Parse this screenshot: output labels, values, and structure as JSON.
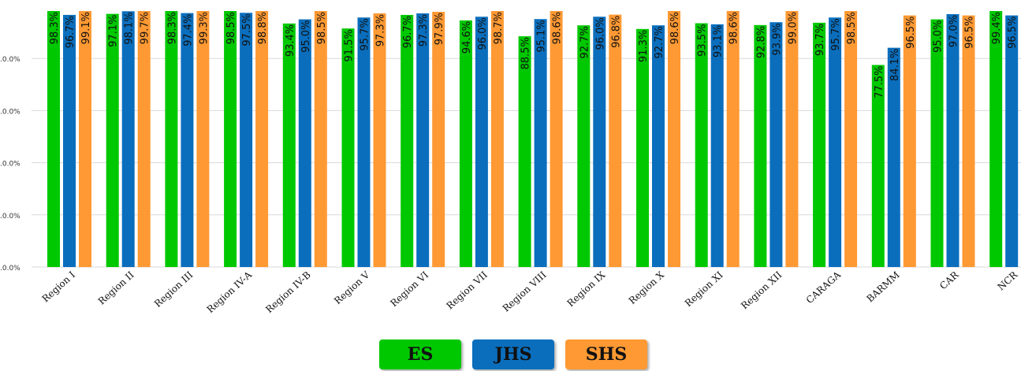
{
  "chart_data": {
    "type": "bar",
    "categories": [
      "Region I",
      "Region II",
      "Region III",
      "Region IV-A",
      "Region IV-B",
      "Region V",
      "Region VI",
      "Region VII",
      "Region VIII",
      "Region IX",
      "Region X",
      "Region XI",
      "Region XII",
      "CARAGA",
      "BARMM",
      "CAR",
      "NCR"
    ],
    "series": [
      {
        "name": "ES",
        "color": "#00c800",
        "values": [
          98.3,
          97.1,
          98.3,
          98.5,
          93.4,
          91.5,
          96.7,
          94.6,
          88.5,
          92.7,
          91.3,
          93.5,
          92.8,
          93.7,
          77.5,
          95.0,
          99.4
        ]
      },
      {
        "name": "JHS",
        "color": "#0a6ebd",
        "values": [
          96.7,
          98.1,
          97.4,
          97.5,
          95.0,
          95.7,
          97.3,
          96.0,
          95.1,
          96.0,
          92.7,
          93.1,
          93.9,
          95.7,
          84.1,
          97.0,
          96.5
        ]
      },
      {
        "name": "SHS",
        "color": "#ff9933",
        "values": [
          99.1,
          99.7,
          99.3,
          98.8,
          98.5,
          97.3,
          97.9,
          98.7,
          98.6,
          96.8,
          98.6,
          98.6,
          99.0,
          98.5,
          96.5,
          96.5,
          98.7
        ]
      }
    ],
    "value_labels": [
      [
        "98.3%",
        "97.1%",
        "98.3%",
        "98.5%",
        "93.4%",
        "91.5%",
        "96.7%",
        "94.6%",
        "88.5%",
        "92.7%",
        "91.3%",
        "93.5%",
        "92.8%",
        "93.7%",
        "77.5%",
        "95.0%",
        "99.4%"
      ],
      [
        "96.7%",
        "98.1%",
        "97.4%",
        "97.5%",
        "95.0%",
        "95.7%",
        "97.3%",
        "96.0%",
        "95.1%",
        "96.0%",
        "92.7%",
        "93.1%",
        "93.9%",
        "95.7%",
        "84.1%",
        "97.0%",
        "96.5%"
      ],
      [
        "99.1%",
        "99.7%",
        "99.3%",
        "98.8%",
        "98.5%",
        "97.3%",
        "97.9%",
        "98.7%",
        "98.6%",
        "96.8%",
        "98.6%",
        "98.6%",
        "99.0%",
        "98.5%",
        "96.5%",
        "96.5%",
        "98.7%"
      ]
    ],
    "yticks": [
      0,
      20,
      40,
      60,
      80
    ],
    "ytick_labels": [
      ".0.0%",
      ".0.0%",
      ".0.0%",
      ".0.0%",
      ".0.0%"
    ],
    "ylim": [
      0,
      100
    ],
    "grid": true,
    "legend_position": "bottom-center",
    "title": "",
    "xlabel": "",
    "ylabel": ""
  }
}
